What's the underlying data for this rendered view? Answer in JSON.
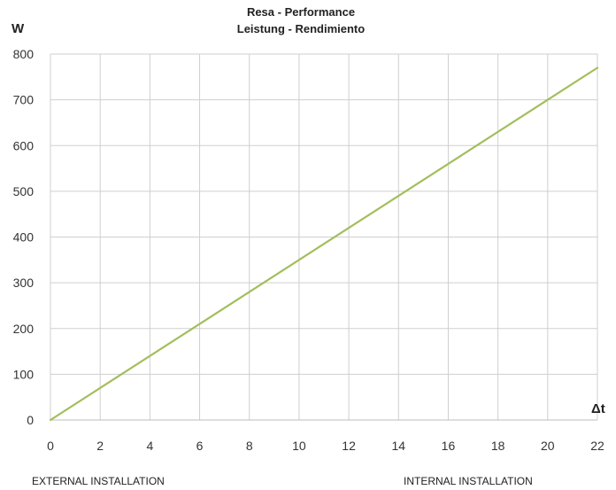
{
  "chart_data": {
    "type": "line",
    "title": "Resa - Performance",
    "subtitle": "Leistung - Rendimiento",
    "ylabel": "W",
    "xlabel": "Δt",
    "x_ticks": [
      0,
      2,
      4,
      6,
      8,
      10,
      12,
      14,
      16,
      18,
      20,
      22
    ],
    "y_ticks": [
      0,
      100,
      200,
      300,
      400,
      500,
      600,
      700,
      800
    ],
    "xlim": [
      0,
      22
    ],
    "ylim": [
      0,
      800
    ],
    "grid": true,
    "line_color": "#a3be5c",
    "series": [
      {
        "x": [
          0,
          22
        ],
        "y": [
          0,
          770
        ]
      }
    ]
  },
  "footer": {
    "left": "EXTERNAL INSTALLATION",
    "right": "INTERNAL INSTALLATION"
  }
}
